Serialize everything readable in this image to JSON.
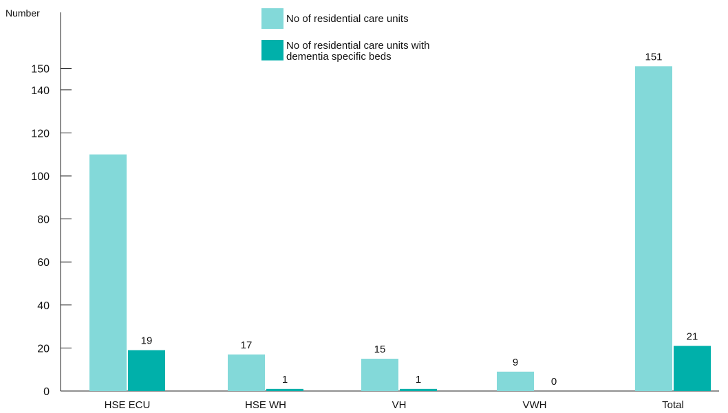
{
  "chart_data": {
    "type": "bar",
    "ylabel": "Number",
    "xlabel": "",
    "title": "",
    "ylim": [
      0,
      160
    ],
    "yticks": [
      0,
      20,
      40,
      60,
      80,
      100,
      120,
      140,
      150
    ],
    "categories": [
      "HSE ECU",
      "HSE WH",
      "VH",
      "VWH",
      "Total"
    ],
    "series": [
      {
        "name": "No of residential care units",
        "color": "#83d9d9",
        "values": [
          110,
          17,
          15,
          9,
          151
        ],
        "labels": [
          "",
          "17",
          "15",
          "9",
          "151"
        ]
      },
      {
        "name": "No of residential care units with dementia specific beds",
        "color": "#00b0aa",
        "values": [
          19,
          1,
          1,
          0,
          21
        ],
        "labels": [
          "19",
          "1",
          "1",
          "0",
          "21"
        ]
      }
    ],
    "grid": false,
    "legend_position": "top-center"
  }
}
